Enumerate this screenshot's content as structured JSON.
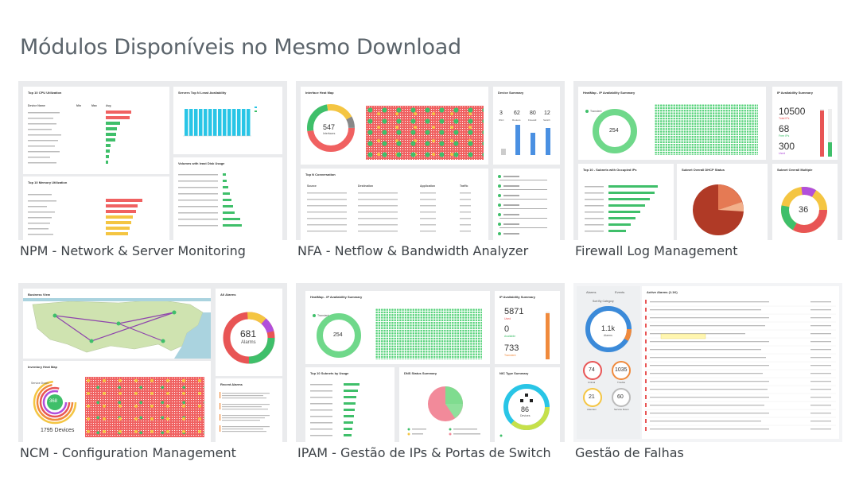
{
  "title": "Módulos Disponíveis no Mesmo Download",
  "modules": [
    {
      "caption": "NPM - Network & Server Monitoring",
      "w1": "Top 10 CPU Utilization",
      "w2": "Servers Top N Least Availability",
      "w3": "Top 10 Memory Utilization",
      "w4": "Volumes with least Disk Usage",
      "col_device": "Device Name",
      "col_min": "Min",
      "col_max": "Max",
      "col_avg": "Avg"
    },
    {
      "caption": "NFA - Netflow & Bandwidth Analyzer",
      "w1": "Interface Heat Map",
      "w2": "Device Summary",
      "w3": "Top N Conversation",
      "center_value": "547",
      "center_label": "Interfaces",
      "stats": [
        "3",
        "62",
        "80",
        "12"
      ],
      "stat_labels": [
        "WLC",
        "Routers",
        "Firewall",
        "Switch"
      ],
      "conv_cols": [
        "Source",
        "Destination",
        "Application",
        "Traffic"
      ]
    },
    {
      "caption": "Firewall Log Management",
      "w1": "HeatMap - IP Availability Summary",
      "w2": "IP Availability Summary",
      "w3": "Top 10 - Subnets with Occupied IPs",
      "w4": "Subnet Overall DHCP Status",
      "w5": "Subnet Overall Multiple",
      "donut_value": "254",
      "legend": "Transient",
      "ip_numbers": [
        "10500",
        "68",
        "300"
      ],
      "ip_labels": [
        "Total IPs",
        "Free IPs",
        "Used"
      ],
      "donut2_value": "36"
    },
    {
      "caption": "NCM - Configuration Management",
      "w1": "Business View",
      "w2": "All Alarms",
      "w3": "Inventory Heat Map",
      "w4": "Recent Alarms",
      "alarms_value": "681",
      "alarms_label": "Alarms",
      "devices_value": "368",
      "devices_total": "1795 Devices",
      "service_label": "Service Down"
    },
    {
      "caption": "IPAM - Gestão de IPs & Portas de Switch",
      "w1": "HeatMap - IP Availability Summary",
      "w2": "IP Availability Summary",
      "w3": "Top 10 Subnets by Usage",
      "w4": "DNS Status Summary",
      "w5": "NIC Type Summary",
      "donut_value": "254",
      "legend": "Transient",
      "ip_numbers": [
        "5871",
        "0",
        "733"
      ],
      "ip_labels": [
        "Used",
        "Available",
        "Transient"
      ],
      "nic_value": "86",
      "nic_label": "Devices"
    },
    {
      "caption": "Gestão de Falhas",
      "tab1": "Alarms",
      "tab2": "Events",
      "sort_label": "Sort By Category",
      "active_title": "Active Alarms (1.1K)",
      "main_value": "1.1k",
      "main_label": "Alarms",
      "circles": [
        "74",
        "1035",
        "21",
        "60"
      ],
      "circle_labels": [
        "Critical",
        "Trouble",
        "Attention",
        "Service Down"
      ]
    }
  ]
}
